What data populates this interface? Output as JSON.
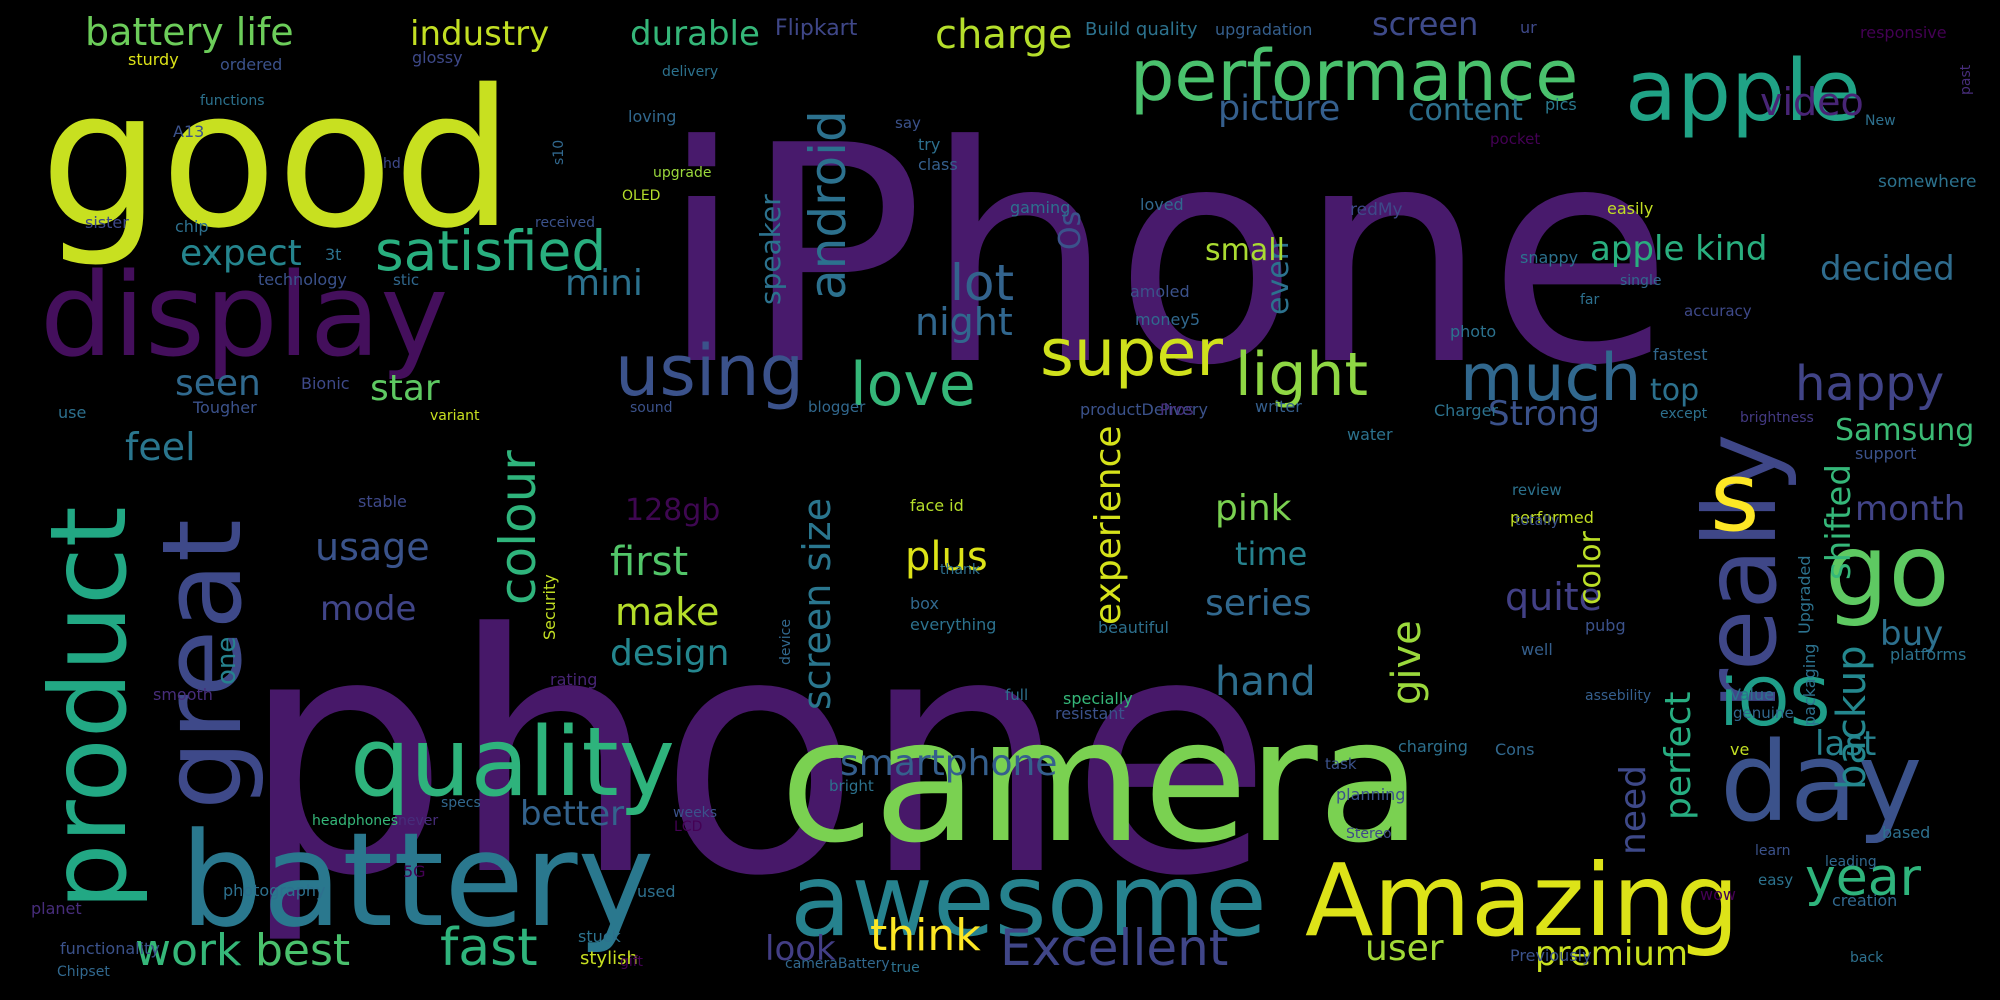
{
  "background": "#000000",
  "words": [
    {
      "text": "phone",
      "color": "#471869"
    },
    {
      "text": "iPhone",
      "color": "#481A6C"
    },
    {
      "text": "good",
      "color": "#C8E020"
    },
    {
      "text": "camera",
      "color": "#7AD151"
    },
    {
      "text": "display",
      "color": "#440F5C"
    },
    {
      "text": "battery",
      "color": "#2A788E"
    },
    {
      "text": "awesome",
      "color": "#26828E"
    },
    {
      "text": "Amazing",
      "color": "#DDE318"
    },
    {
      "text": "great",
      "color": "#3E4989"
    },
    {
      "text": "product",
      "color": "#22A884"
    },
    {
      "text": "quality",
      "color": "#2EB37C"
    },
    {
      "text": "apple",
      "color": "#20A386"
    },
    {
      "text": "performance",
      "color": "#4AC16D"
    },
    {
      "text": "day",
      "color": "#3B528B"
    },
    {
      "text": "really",
      "color": "#3F4788"
    },
    {
      "text": "go",
      "color": "#5EC962"
    },
    {
      "text": "s",
      "color": "#FDE725"
    },
    {
      "text": "iOS",
      "color": "#1F9E89"
    },
    {
      "text": "super",
      "color": "#D0E11C"
    },
    {
      "text": "using",
      "color": "#3B528B"
    },
    {
      "text": "love",
      "color": "#35B779"
    },
    {
      "text": "light",
      "color": "#8FD744"
    },
    {
      "text": "much",
      "color": "#31688E"
    },
    {
      "text": "satisfied",
      "color": "#29AF7F"
    },
    {
      "text": "lot",
      "color": "#33638D"
    },
    {
      "text": "android",
      "color": "#2C718E"
    },
    {
      "text": "Excellent",
      "color": "#404688"
    },
    {
      "text": "battery life",
      "color": "#6CCD5A"
    },
    {
      "text": "industry",
      "color": "#C2DF23"
    },
    {
      "text": "durable",
      "color": "#35B779"
    },
    {
      "text": "charge",
      "color": "#B5DE2B"
    },
    {
      "text": "screen",
      "color": "#3E4A89"
    },
    {
      "text": "picture",
      "color": "#355F8D"
    },
    {
      "text": "content",
      "color": "#2D708E"
    },
    {
      "text": "video",
      "color": "#482576"
    },
    {
      "text": "happy",
      "color": "#414487"
    },
    {
      "text": "decided",
      "color": "#2F6C8E"
    },
    {
      "text": "expect",
      "color": "#25858E"
    },
    {
      "text": "mini",
      "color": "#2C728E"
    },
    {
      "text": "night",
      "color": "#31678E"
    },
    {
      "text": "seen",
      "color": "#30698E"
    },
    {
      "text": "star",
      "color": "#5EC962"
    },
    {
      "text": "feel",
      "color": "#2A768E"
    },
    {
      "text": "colour",
      "color": "#2FB47C"
    },
    {
      "text": "usage",
      "color": "#3A538B"
    },
    {
      "text": "128gb",
      "color": "#3E0751"
    },
    {
      "text": "first",
      "color": "#52C569"
    },
    {
      "text": "mode",
      "color": "#404588"
    },
    {
      "text": "make",
      "color": "#B5DE2B"
    },
    {
      "text": "design",
      "color": "#24868E"
    },
    {
      "text": "screen size",
      "color": "#2A768E"
    },
    {
      "text": "better",
      "color": "#33638D"
    },
    {
      "text": "hand",
      "color": "#2E6E8E"
    },
    {
      "text": "give",
      "color": "#9BD93C"
    },
    {
      "text": "experience",
      "color": "#D5E21A"
    },
    {
      "text": "plus",
      "color": "#DDE318"
    },
    {
      "text": "pink",
      "color": "#7AD151"
    },
    {
      "text": "time",
      "color": "#26828E"
    },
    {
      "text": "series",
      "color": "#31688E"
    },
    {
      "text": "quite",
      "color": "#424086"
    },
    {
      "text": "top",
      "color": "#2C718E"
    },
    {
      "text": "Strong",
      "color": "#3B528B"
    },
    {
      "text": "Samsung",
      "color": "#3BBB75"
    },
    {
      "text": "month",
      "color": "#414487"
    },
    {
      "text": "buy",
      "color": "#2D708E"
    },
    {
      "text": "color",
      "color": "#BBDF27"
    },
    {
      "text": "last",
      "color": "#26828E"
    },
    {
      "text": "year",
      "color": "#2FB47C"
    },
    {
      "text": "need",
      "color": "#3E4989"
    },
    {
      "text": "perfect",
      "color": "#27AD81"
    },
    {
      "text": "backup",
      "color": "#24878E"
    },
    {
      "text": "shifted",
      "color": "#35B779"
    },
    {
      "text": "apple kind",
      "color": "#29AF7F"
    },
    {
      "text": "even",
      "color": "#2C728E"
    },
    {
      "text": "small",
      "color": "#AADC32"
    },
    {
      "text": "Os",
      "color": "#3B528B"
    },
    {
      "text": "speaker",
      "color": "#2C728E"
    },
    {
      "text": "smartphone",
      "color": "#355F8D"
    },
    {
      "text": "think",
      "color": "#FDE725"
    },
    {
      "text": "user",
      "color": "#A2DA37"
    },
    {
      "text": "premium",
      "color": "#C8E020"
    },
    {
      "text": "work",
      "color": "#35B779"
    },
    {
      "text": "best",
      "color": "#4AC16D"
    },
    {
      "text": "fast",
      "color": "#2FB47C"
    },
    {
      "text": "look",
      "color": "#433E85"
    },
    {
      "text": "one",
      "color": "#26828E"
    },
    {
      "text": "Flipkart",
      "color": "#3F4788"
    },
    {
      "text": "Build quality",
      "color": "#2C728E"
    },
    {
      "text": "upgradation",
      "color": "#355F8D"
    },
    {
      "text": "ur",
      "color": "#3E4989"
    },
    {
      "text": "responsive",
      "color": "#440154"
    },
    {
      "text": "New",
      "color": "#2D708E"
    },
    {
      "text": "past",
      "color": "#472D7B"
    },
    {
      "text": "sturdy",
      "color": "#DDE318"
    },
    {
      "text": "ordered",
      "color": "#3B528B"
    },
    {
      "text": "glossy",
      "color": "#3E4989"
    },
    {
      "text": "functions",
      "color": "#2C728E"
    },
    {
      "text": "A13",
      "color": "#3B528B"
    },
    {
      "text": "hd",
      "color": "#3E4989"
    },
    {
      "text": "s10",
      "color": "#31688E"
    },
    {
      "text": "upgrade",
      "color": "#9BD93C"
    },
    {
      "text": "OLED",
      "color": "#B5DE2B"
    },
    {
      "text": "loving",
      "color": "#31688E"
    },
    {
      "text": "delivery",
      "color": "#2C728E"
    },
    {
      "text": "say",
      "color": "#3B528B"
    },
    {
      "text": "try",
      "color": "#2D708E"
    },
    {
      "text": "class",
      "color": "#355F8D"
    },
    {
      "text": "pics",
      "color": "#2A788E"
    },
    {
      "text": "pocket",
      "color": "#440154"
    },
    {
      "text": "somewhere",
      "color": "#2C728E"
    },
    {
      "text": "sister",
      "color": "#3E4989"
    },
    {
      "text": "chip",
      "color": "#2D708E"
    },
    {
      "text": "received",
      "color": "#3B528B"
    },
    {
      "text": "3t",
      "color": "#2C728E"
    },
    {
      "text": "stic",
      "color": "#31688E"
    },
    {
      "text": "technology",
      "color": "#3B528B"
    },
    {
      "text": "loved",
      "color": "#31688E"
    },
    {
      "text": "gaming",
      "color": "#2D708E"
    },
    {
      "text": "redMy",
      "color": "#3E4989"
    },
    {
      "text": "easily",
      "color": "#C2DF23"
    },
    {
      "text": "snappy",
      "color": "#2C728E"
    },
    {
      "text": "single",
      "color": "#31688E"
    },
    {
      "text": "far",
      "color": "#2D708E"
    },
    {
      "text": "accuracy",
      "color": "#3E4989"
    },
    {
      "text": "amoled",
      "color": "#3B528B"
    },
    {
      "text": "money5",
      "color": "#31688E"
    },
    {
      "text": "photo",
      "color": "#2C728E"
    },
    {
      "text": "fastest",
      "color": "#31688E"
    },
    {
      "text": "use",
      "color": "#2D708E"
    },
    {
      "text": "Tougher",
      "color": "#3B528B"
    },
    {
      "text": "Bionic",
      "color": "#3E4989"
    },
    {
      "text": "variant",
      "color": "#C8E020"
    },
    {
      "text": "sound",
      "color": "#3B528B"
    },
    {
      "text": "blogger",
      "color": "#31688E"
    },
    {
      "text": "productDelivery",
      "color": "#3B528B"
    },
    {
      "text": "Pros",
      "color": "#472D7B"
    },
    {
      "text": "writer",
      "color": "#355F8D"
    },
    {
      "text": "Charger",
      "color": "#2C728E"
    },
    {
      "text": "except",
      "color": "#2D708E"
    },
    {
      "text": "brightness",
      "color": "#443A83"
    },
    {
      "text": "water",
      "color": "#2C728E"
    },
    {
      "text": "support",
      "color": "#3B528B"
    },
    {
      "text": "stable",
      "color": "#3E4989"
    },
    {
      "text": "face id",
      "color": "#B5DE2B"
    },
    {
      "text": "thank",
      "color": "#2D708E"
    },
    {
      "text": "review",
      "color": "#2C728E"
    },
    {
      "text": "performed",
      "color": "#C2DF23"
    },
    {
      "text": "box",
      "color": "#31688E"
    },
    {
      "text": "totally",
      "color": "#3B528B"
    },
    {
      "text": "everything",
      "color": "#2C728E"
    },
    {
      "text": "beautiful",
      "color": "#2D708E"
    },
    {
      "text": "well",
      "color": "#355F8D"
    },
    {
      "text": "pubg",
      "color": "#3B528B"
    },
    {
      "text": "Upgraded",
      "color": "#2C728E"
    },
    {
      "text": "platforms",
      "color": "#2C728E"
    },
    {
      "text": "specially",
      "color": "#35B779"
    },
    {
      "text": "Security",
      "color": "#C2DF23"
    },
    {
      "text": "device",
      "color": "#31688E"
    },
    {
      "text": "smooth",
      "color": "#472D7B"
    },
    {
      "text": "full",
      "color": "#2D708E"
    },
    {
      "text": "rating",
      "color": "#482576"
    },
    {
      "text": "assebility",
      "color": "#355F8D"
    },
    {
      "text": "resistant",
      "color": "#3B528B"
    },
    {
      "text": "Value",
      "color": "#2C728E"
    },
    {
      "text": "genuine",
      "color": "#31688E"
    },
    {
      "text": "charging",
      "color": "#2D708E"
    },
    {
      "text": "task",
      "color": "#3B528B"
    },
    {
      "text": "Cons",
      "color": "#31688E"
    },
    {
      "text": "packaging",
      "color": "#2C728E"
    },
    {
      "text": "ve",
      "color": "#C2DF23"
    },
    {
      "text": "based",
      "color": "#2D708E"
    },
    {
      "text": "leading",
      "color": "#31688E"
    },
    {
      "text": "learn",
      "color": "#3B528B"
    },
    {
      "text": "easy",
      "color": "#2C728E"
    },
    {
      "text": "wow",
      "color": "#440154"
    },
    {
      "text": "creation",
      "color": "#31688E"
    },
    {
      "text": "photography",
      "color": "#2D708E"
    },
    {
      "text": "headphones",
      "color": "#35B779"
    },
    {
      "text": "never",
      "color": "#472D7B"
    },
    {
      "text": "specs",
      "color": "#31688E"
    },
    {
      "text": "weeks",
      "color": "#3B528B"
    },
    {
      "text": "LCD",
      "color": "#440154"
    },
    {
      "text": "bright",
      "color": "#2C728E"
    },
    {
      "text": "planning",
      "color": "#3B528B"
    },
    {
      "text": "Stereo",
      "color": "#3E4989"
    },
    {
      "text": "5G",
      "color": "#440154"
    },
    {
      "text": "used",
      "color": "#2D708E"
    },
    {
      "text": "planet",
      "color": "#472D7B"
    },
    {
      "text": "functionality",
      "color": "#3B528B"
    },
    {
      "text": "Chipset",
      "color": "#31688E"
    },
    {
      "text": "stuck",
      "color": "#2C728E"
    },
    {
      "text": "stylish",
      "color": "#C8E020"
    },
    {
      "text": "gift",
      "color": "#440154"
    },
    {
      "text": "cameraBattery",
      "color": "#31688E"
    },
    {
      "text": "true",
      "color": "#2C728E"
    },
    {
      "text": "Previously",
      "color": "#3B528B"
    },
    {
      "text": "back",
      "color": "#2D708E"
    },
    {
      "text": "contrast",
      "color": "#472D7B"
    }
  ]
}
